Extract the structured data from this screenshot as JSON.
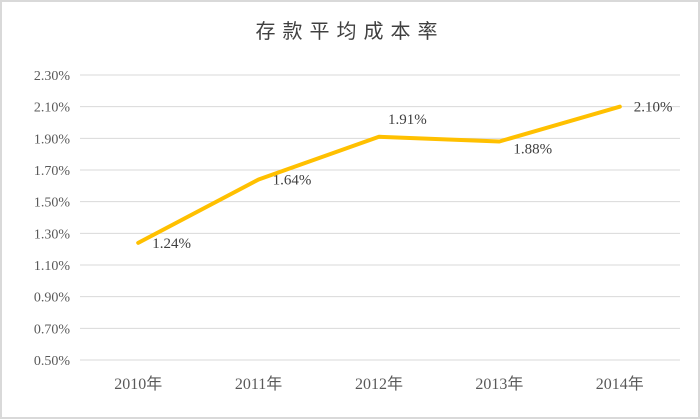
{
  "chart_data": {
    "type": "line",
    "title": "存款平均成本率",
    "categories": [
      "2010年",
      "2011年",
      "2012年",
      "2013年",
      "2014年"
    ],
    "series": [
      {
        "name": "存款平均成本率",
        "values": [
          1.24,
          1.64,
          1.91,
          1.88,
          2.1
        ]
      }
    ],
    "data_labels": [
      "1.24%",
      "1.64%",
      "1.91%",
      "1.88%",
      "2.10%"
    ],
    "label_positions": [
      "right",
      "right",
      "above",
      "below",
      "right"
    ],
    "y_axis": {
      "min": 0.5,
      "max": 2.3,
      "step": 0.2,
      "tick_labels": [
        "2.30%",
        "2.10%",
        "1.90%",
        "1.70%",
        "1.50%",
        "1.30%",
        "1.10%",
        "0.90%",
        "0.70%",
        "0.50%"
      ]
    },
    "x_axis": {
      "label_suffix": "年"
    },
    "grid": true,
    "legend": "none",
    "colors": {
      "line": "#FFC000",
      "grid": "#D9D9D9",
      "axis_label": "#595959",
      "data_label": "#404040",
      "title": "#404040",
      "border": "#D9D9D9",
      "background": "#FFFFFF"
    }
  }
}
